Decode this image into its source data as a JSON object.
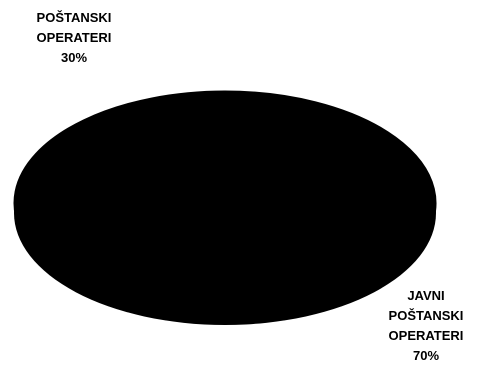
{
  "chart_data": {
    "type": "pie",
    "title": "",
    "slices": [
      {
        "label_lines": [
          "POŠTANSKI",
          "OPERATERI"
        ],
        "percent_label": "30%",
        "value": 30
      },
      {
        "label_lines": [
          "JAVNI",
          "POŠTANSKI",
          "OPERATERI"
        ],
        "percent_label": "70%",
        "value": 70
      }
    ],
    "colors": [
      "#000000",
      "#000000"
    ],
    "legend": "none",
    "view": "3d-tilted"
  }
}
